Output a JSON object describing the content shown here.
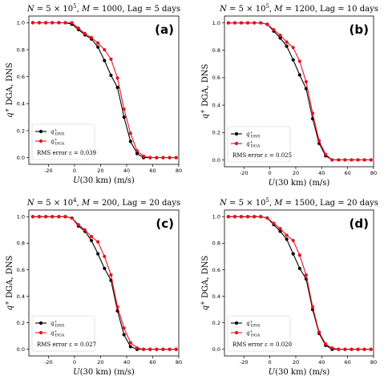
{
  "chart_data": [
    {
      "type": "line",
      "panel_label": "(a)",
      "title": "N = 5 × 10^5, M = 1000, Lag = 5 days",
      "title_parts": {
        "N_mant": "5",
        "N_exp": "5",
        "M": "1000",
        "lag": "5 days"
      },
      "xlabel": "U(30 km) (m/s)",
      "ylabel": "q+ DGA, DNS",
      "xlim": [
        -35,
        80
      ],
      "ylim": [
        -0.05,
        1.05
      ],
      "xticks": [
        -20,
        0,
        20,
        40,
        60,
        80
      ],
      "yticks": [
        0.0,
        0.2,
        0.4,
        0.6,
        0.8,
        1.0
      ],
      "legend": {
        "position": "lower-left",
        "rms_label": "RMS error ε = 0.039"
      },
      "x": [
        -32,
        -27,
        -22,
        -17,
        -12,
        -7,
        -2,
        3,
        8,
        13,
        18,
        23,
        28,
        33,
        38,
        43,
        48,
        53,
        58,
        63,
        68,
        73,
        78
      ],
      "series": [
        {
          "name": "q+ DNS",
          "color": "#000000",
          "values": [
            1.0,
            1.0,
            1.0,
            1.0,
            1.0,
            1.0,
            0.99,
            0.95,
            0.91,
            0.88,
            0.82,
            0.72,
            0.61,
            0.52,
            0.3,
            0.12,
            0.03,
            0.0,
            0.0,
            0.0,
            0.0,
            0.0,
            0.0
          ]
        },
        {
          "name": "q+ DGA",
          "color": "#e8101e",
          "values": [
            1.0,
            1.0,
            1.0,
            1.0,
            1.0,
            1.0,
            1.0,
            0.96,
            0.92,
            0.89,
            0.85,
            0.8,
            0.73,
            0.59,
            0.36,
            0.18,
            0.05,
            0.01,
            0.0,
            0.0,
            0.0,
            0.0,
            0.0
          ]
        }
      ]
    },
    {
      "type": "line",
      "panel_label": "(b)",
      "title": "N = 5 × 10^5, M = 1200, Lag = 10 days",
      "title_parts": {
        "N_mant": "5",
        "N_exp": "5",
        "M": "1200",
        "lag": "10 days"
      },
      "xlabel": "U(30 km) (m/s)",
      "ylabel": "q+ DGA, DNS",
      "xlim": [
        -35,
        80
      ],
      "ylim": [
        -0.05,
        1.05
      ],
      "xticks": [
        -20,
        0,
        20,
        40,
        60,
        80
      ],
      "yticks": [
        0.0,
        0.2,
        0.4,
        0.6,
        0.8,
        1.0
      ],
      "legend": {
        "position": "lower-left",
        "rms_label": "RMS error ε = 0.025"
      },
      "x": [
        -32,
        -27,
        -22,
        -17,
        -12,
        -7,
        -2,
        3,
        8,
        13,
        18,
        23,
        28,
        33,
        38,
        43,
        48,
        53,
        58,
        63,
        68,
        73,
        78
      ],
      "series": [
        {
          "name": "q+ DNS",
          "color": "#000000",
          "values": [
            1.0,
            1.0,
            1.0,
            1.0,
            1.0,
            1.0,
            0.99,
            0.94,
            0.89,
            0.83,
            0.73,
            0.62,
            0.52,
            0.3,
            0.12,
            0.03,
            0.0,
            0.0,
            0.0,
            0.0,
            0.0,
            0.0,
            0.0
          ]
        },
        {
          "name": "q+ DGA",
          "color": "#e8101e",
          "values": [
            1.0,
            1.0,
            1.0,
            1.0,
            1.0,
            1.0,
            0.99,
            0.95,
            0.91,
            0.86,
            0.82,
            0.72,
            0.57,
            0.34,
            0.14,
            0.04,
            0.0,
            0.0,
            0.0,
            0.0,
            0.0,
            0.0,
            0.0
          ]
        }
      ]
    },
    {
      "type": "line",
      "panel_label": "(c)",
      "title": "N = 5 × 10^4, M = 200, Lag = 20 days",
      "title_parts": {
        "N_mant": "5",
        "N_exp": "4",
        "M": "200",
        "lag": "20 days"
      },
      "xlabel": "U(30 km) (m/s)",
      "ylabel": "q+ DGA, DNS",
      "xlim": [
        -35,
        80
      ],
      "ylim": [
        -0.05,
        1.05
      ],
      "xticks": [
        -20,
        0,
        20,
        40,
        60,
        80
      ],
      "yticks": [
        0.0,
        0.2,
        0.4,
        0.6,
        0.8,
        1.0
      ],
      "legend": {
        "position": "lower-left",
        "rms_label": "RMS error ε = 0.027"
      },
      "x": [
        -32,
        -27,
        -22,
        -17,
        -12,
        -7,
        -2,
        3,
        8,
        13,
        18,
        23,
        28,
        33,
        38,
        43,
        48,
        53,
        58,
        63,
        68,
        73,
        78
      ],
      "series": [
        {
          "name": "q+ DNS",
          "color": "#000000",
          "values": [
            1.0,
            1.0,
            1.0,
            1.0,
            1.0,
            1.0,
            0.99,
            0.93,
            0.89,
            0.82,
            0.72,
            0.61,
            0.52,
            0.29,
            0.11,
            0.02,
            0.0,
            0.0,
            0.0,
            0.0,
            0.0,
            0.0,
            0.0
          ]
        },
        {
          "name": "q+ DGA",
          "color": "#e8101e",
          "values": [
            1.0,
            1.0,
            1.0,
            1.0,
            1.0,
            1.0,
            0.99,
            0.94,
            0.9,
            0.85,
            0.81,
            0.7,
            0.56,
            0.32,
            0.16,
            0.05,
            0.01,
            0.0,
            0.0,
            0.0,
            0.0,
            0.0,
            0.0
          ]
        }
      ]
    },
    {
      "type": "line",
      "panel_label": "(d)",
      "title": "N = 5 × 10^5, M = 1500, Lag = 20 days",
      "title_parts": {
        "N_mant": "5",
        "N_exp": "5",
        "M": "1500",
        "lag": "20 days"
      },
      "xlabel": "U(30 km) (m/s)",
      "ylabel": "q+ DGA, DNS",
      "xlim": [
        -35,
        80
      ],
      "ylim": [
        -0.05,
        1.05
      ],
      "xticks": [
        -20,
        0,
        20,
        40,
        60,
        80
      ],
      "yticks": [
        0.0,
        0.2,
        0.4,
        0.6,
        0.8,
        1.0
      ],
      "legend": {
        "position": "lower-left",
        "rms_label": "RMS error ε = 0.020"
      },
      "x": [
        -32,
        -27,
        -22,
        -17,
        -12,
        -7,
        -2,
        3,
        8,
        13,
        18,
        23,
        28,
        33,
        38,
        43,
        48,
        53,
        58,
        63,
        68,
        73,
        78
      ],
      "series": [
        {
          "name": "q+ DNS",
          "color": "#000000",
          "values": [
            1.0,
            1.0,
            1.0,
            1.0,
            1.0,
            1.0,
            0.99,
            0.94,
            0.89,
            0.83,
            0.72,
            0.61,
            0.53,
            0.3,
            0.12,
            0.03,
            0.0,
            0.0,
            0.0,
            0.0,
            0.0,
            0.0,
            0.0
          ]
        },
        {
          "name": "q+ DGA",
          "color": "#e8101e",
          "values": [
            1.0,
            1.0,
            1.0,
            1.0,
            1.0,
            1.0,
            0.99,
            0.95,
            0.91,
            0.86,
            0.82,
            0.71,
            0.56,
            0.32,
            0.13,
            0.04,
            0.01,
            0.0,
            0.0,
            0.0,
            0.0,
            0.0,
            0.0
          ]
        }
      ]
    }
  ]
}
